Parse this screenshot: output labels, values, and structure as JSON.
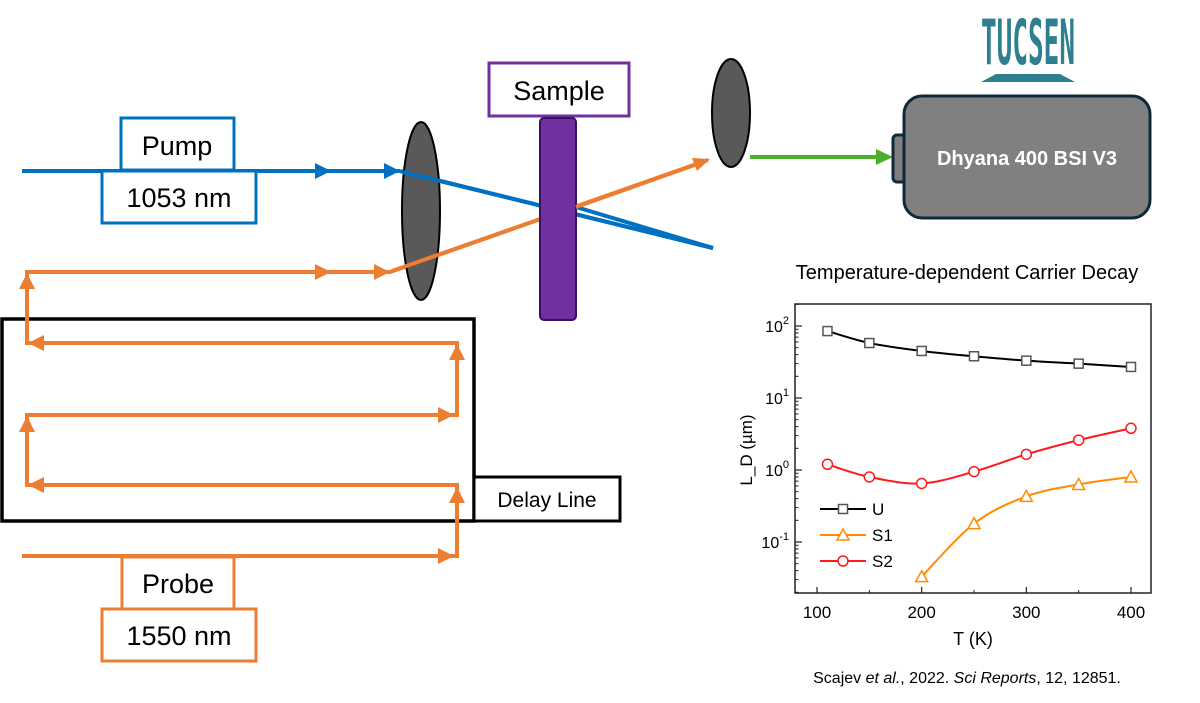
{
  "diagram": {
    "pump": {
      "label": "Pump",
      "wavelength": "1053 nm"
    },
    "probe": {
      "label": "Probe",
      "wavelength": "1550 nm"
    },
    "sample": {
      "label": "Sample"
    },
    "delay_line": {
      "label": "Delay Line"
    },
    "camera": {
      "label": "Dhyana 400 BSI V3",
      "brand_logo": "TUCSEN"
    },
    "colors": {
      "pump": "#0070c0",
      "probe": "#ed7d31",
      "signal": "#4caf2a",
      "sample": "#7030a0",
      "lens": "#595959",
      "camera": "#808080",
      "logo": "#2e8090"
    }
  },
  "chart_data": {
    "type": "line",
    "title": "Temperature-dependent Carrier Decay",
    "xlabel": "T (K)",
    "ylabel": "L_D (µm)",
    "ylabel_main": "L",
    "ylabel_sub": "D",
    "ylabel_unit": " (µm)",
    "xlim": [
      90,
      410
    ],
    "ylim": [
      0.0196,
      200
    ],
    "yscale": "log",
    "xticks": [
      "100",
      "200",
      "300",
      "400"
    ],
    "yticks": [
      {
        "base": "10",
        "exp": "2"
      },
      {
        "base": "10",
        "exp": "1"
      },
      {
        "base": "10",
        "exp": "0"
      },
      {
        "base": "10",
        "exp": "-1"
      }
    ],
    "legend_position": "bottom-left",
    "series": [
      {
        "name": "U",
        "color": "#000000",
        "marker": "square",
        "x": [
          110,
          150,
          200,
          250,
          300,
          350,
          400
        ],
        "y": [
          85,
          58,
          45,
          38,
          33,
          30,
          27
        ]
      },
      {
        "name": "S1",
        "color": "#ff8c00",
        "marker": "triangle",
        "x": [
          200,
          250,
          300,
          350,
          400
        ],
        "y": [
          0.033,
          0.18,
          0.43,
          0.63,
          0.8
        ]
      },
      {
        "name": "S2",
        "color": "#ff1a1a",
        "marker": "circle",
        "x": [
          110,
          150,
          200,
          250,
          300,
          350,
          400
        ],
        "y": [
          1.2,
          0.8,
          0.65,
          0.95,
          1.65,
          2.6,
          3.8
        ]
      }
    ]
  },
  "citation": {
    "authors": "Scajev ",
    "etal": "et al.",
    "rest1": ", 2022. ",
    "journal": "Sci Reports",
    "rest2": ", 12, 12851."
  }
}
